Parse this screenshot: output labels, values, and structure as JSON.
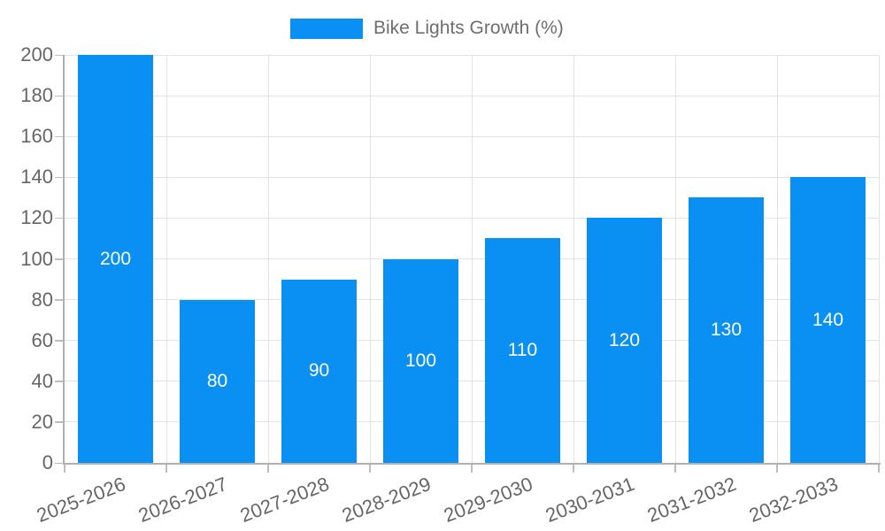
{
  "colors": {
    "background": "#ffffff",
    "bar": "#0a8ff2",
    "bar_label": "#ffffff",
    "legend_text": "#6e6e6e",
    "axis_text": "#666666",
    "grid": "#e3e3e3",
    "axis_line": "#b0b0b0",
    "tick": "#bdbdbd"
  },
  "chart_data": {
    "type": "bar",
    "title": "Bike Lights Growth (%)",
    "legend": [
      "Bike Lights Growth (%)"
    ],
    "legend_position": "top-center",
    "categories": [
      "2025-2026",
      "2026-2027",
      "2027-2028",
      "2028-2029",
      "2029-2030",
      "2030-2031",
      "2031-2032",
      "2032-2033"
    ],
    "values": [
      200,
      80,
      90,
      100,
      110,
      120,
      130,
      140
    ],
    "bar_labels": [
      "200",
      "80",
      "90",
      "100",
      "110",
      "120",
      "130",
      "140"
    ],
    "xlabel": "",
    "ylabel": "",
    "ylim": [
      0,
      200
    ],
    "ytick_step": 20,
    "yticks": [
      "0",
      "20",
      "40",
      "60",
      "80",
      "100",
      "120",
      "140",
      "160",
      "180",
      "200"
    ],
    "grid": true,
    "x_tick_label_rotation_deg": -21
  }
}
